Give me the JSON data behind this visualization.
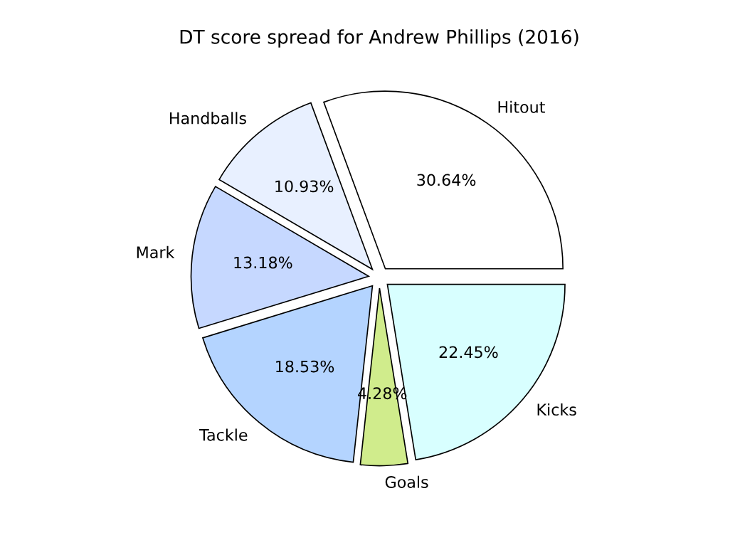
{
  "chart_data": {
    "type": "pie",
    "title": "DT score spread for Andrew Phillips (2016)",
    "categories": [
      "Hitout",
      "Handballs",
      "Mark",
      "Tackle",
      "Goals",
      "Kicks"
    ],
    "values": [
      30.64,
      10.93,
      13.18,
      18.53,
      4.28,
      22.45
    ],
    "value_labels": [
      "30.64%",
      "10.93%",
      "13.18%",
      "18.53%",
      "4.28%",
      "22.45%"
    ],
    "colors": [
      "#ffffff",
      "#e8f0ff",
      "#c6d8ff",
      "#b4d4ff",
      "#d0ec8c",
      "#d8ffff"
    ],
    "legend": false
  }
}
